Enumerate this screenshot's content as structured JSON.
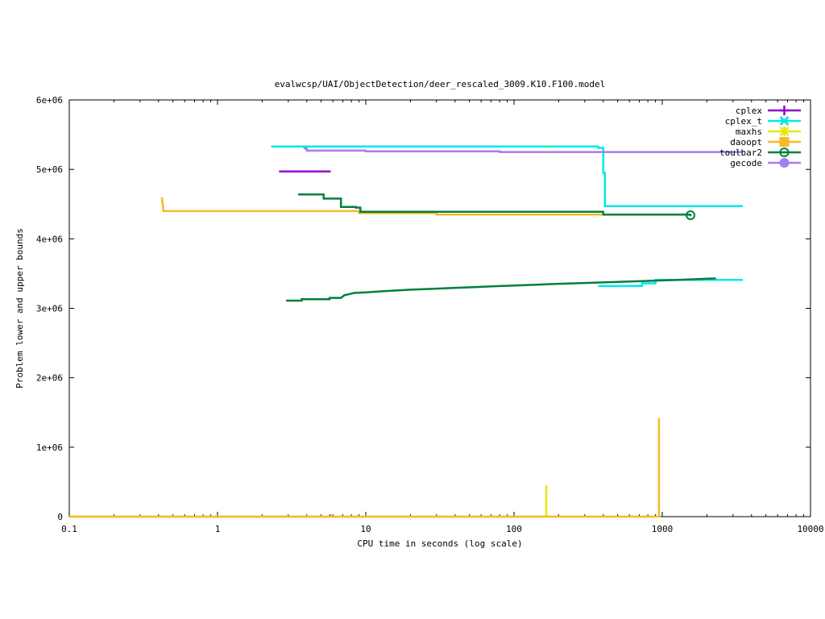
{
  "chart_data": {
    "type": "line",
    "title": "evalwcsp/UAI/ObjectDetection/deer_rescaled_3009.K10.F100.model",
    "xlabel": "CPU time in seconds (log scale)",
    "ylabel": "Problem lower and upper bounds",
    "x_scale": "log",
    "xlim": [
      0.1,
      10000
    ],
    "ylim": [
      0,
      6000000
    ],
    "x_ticks": [
      0.1,
      1,
      10,
      100,
      1000,
      10000
    ],
    "x_tick_labels": [
      "0.1",
      "1",
      "10",
      "100",
      "1000",
      "10000"
    ],
    "y_ticks": [
      0,
      1000000,
      2000000,
      3000000,
      4000000,
      5000000,
      6000000
    ],
    "y_tick_labels": [
      "0",
      "1e+06",
      "2e+06",
      "3e+06",
      "4e+06",
      "5e+06",
      "6e+06"
    ],
    "grid": false,
    "legend_position": "top-right",
    "series": [
      {
        "name": "cplex",
        "color": "#9400d3",
        "marker": "plus",
        "segments": [
          [
            [
              2.6,
              4970000
            ],
            [
              5.8,
              4970000
            ]
          ],
          [
            [
              5.75,
              0
            ],
            [
              5.75,
              30000
            ]
          ]
        ]
      },
      {
        "name": "cplex_t",
        "color": "#00e8e8",
        "marker": "cross",
        "segments": [
          [
            [
              2.3,
              5330000
            ],
            [
              370,
              5330000
            ],
            [
              370,
              5310000
            ],
            [
              400,
              5310000
            ],
            [
              400,
              4950000
            ],
            [
              410,
              4950000
            ],
            [
              410,
              4470000
            ],
            [
              3500,
              4470000
            ]
          ],
          [
            [
              370,
              3320000
            ],
            [
              730,
              3320000
            ],
            [
              730,
              3360000
            ],
            [
              900,
              3360000
            ],
            [
              900,
              3410000
            ],
            [
              3500,
              3410000
            ]
          ]
        ]
      },
      {
        "name": "maxhs",
        "color": "#e8e800",
        "marker": "star",
        "segments": [
          [
            [
              0.1,
              0
            ],
            [
              165,
              0
            ]
          ],
          [
            [
              165,
              0
            ],
            [
              165,
              450000
            ]
          ],
          [
            [
              165,
              5320000
            ],
            [
              168,
              5320000
            ]
          ]
        ]
      },
      {
        "name": "daoopt",
        "color": "#f7b928",
        "marker": "box",
        "segments": [
          [
            [
              0.1,
              0
            ],
            [
              980,
              0
            ]
          ],
          [
            [
              0.42,
              4600000
            ],
            [
              0.43,
              4450000
            ],
            [
              0.43,
              4400000
            ],
            [
              9,
              4400000
            ],
            [
              9,
              4370000
            ],
            [
              30,
              4370000
            ],
            [
              30,
              4350000
            ],
            [
              1000,
              4350000
            ]
          ],
          [
            [
              950,
              0
            ],
            [
              950,
              1420000
            ]
          ]
        ]
      },
      {
        "name": "toulbar2",
        "color": "#007f3f",
        "marker": "circle",
        "segments": [
          [
            [
              3.5,
              4640000
            ],
            [
              5.2,
              4640000
            ],
            [
              5.2,
              4580000
            ],
            [
              6.8,
              4580000
            ],
            [
              6.8,
              4460000
            ],
            [
              8.6,
              4460000
            ],
            [
              8.6,
              4450000
            ],
            [
              9.2,
              4450000
            ],
            [
              9.2,
              4390000
            ],
            [
              400,
              4390000
            ],
            [
              400,
              4350000
            ],
            [
              1550,
              4350000
            ]
          ],
          [
            [
              2.9,
              3110000
            ],
            [
              3.7,
              3110000
            ],
            [
              3.7,
              3130000
            ],
            [
              5.7,
              3130000
            ],
            [
              5.7,
              3150000
            ],
            [
              6.8,
              3150000
            ],
            [
              7.2,
              3190000
            ],
            [
              7.6,
              3200000
            ],
            [
              8.3,
              3220000
            ],
            [
              10,
              3230000
            ],
            [
              12,
              3240000
            ],
            [
              14,
              3250000
            ],
            [
              17,
              3260000
            ],
            [
              21,
              3270000
            ],
            [
              28,
              3280000
            ],
            [
              36,
              3290000
            ],
            [
              48,
              3300000
            ],
            [
              62,
              3310000
            ],
            [
              80,
              3320000
            ],
            [
              105,
              3330000
            ],
            [
              140,
              3340000
            ],
            [
              190,
              3350000
            ],
            [
              260,
              3360000
            ],
            [
              360,
              3370000
            ],
            [
              500,
              3380000
            ],
            [
              700,
              3390000
            ],
            [
              950,
              3400000
            ],
            [
              1300,
              3410000
            ],
            [
              1750,
              3420000
            ],
            [
              2300,
              3430000
            ]
          ],
          [
            [
              1550,
              4340000
            ],
            [
              1550,
              4340000
            ]
          ]
        ],
        "end_markers": [
          [
            1550,
            4340000
          ]
        ]
      },
      {
        "name": "gecode",
        "color": "#a37fef",
        "marker": "filled-circle",
        "segments": [
          [
            [
              3.8,
              5310000
            ],
            [
              3.9,
              5300000
            ],
            [
              4.0,
              5300000
            ],
            [
              4.0,
              5270000
            ],
            [
              10,
              5270000
            ],
            [
              10,
              5260000
            ],
            [
              80,
              5260000
            ],
            [
              80,
              5250000
            ],
            [
              3500,
              5250000
            ]
          ]
        ]
      }
    ]
  }
}
